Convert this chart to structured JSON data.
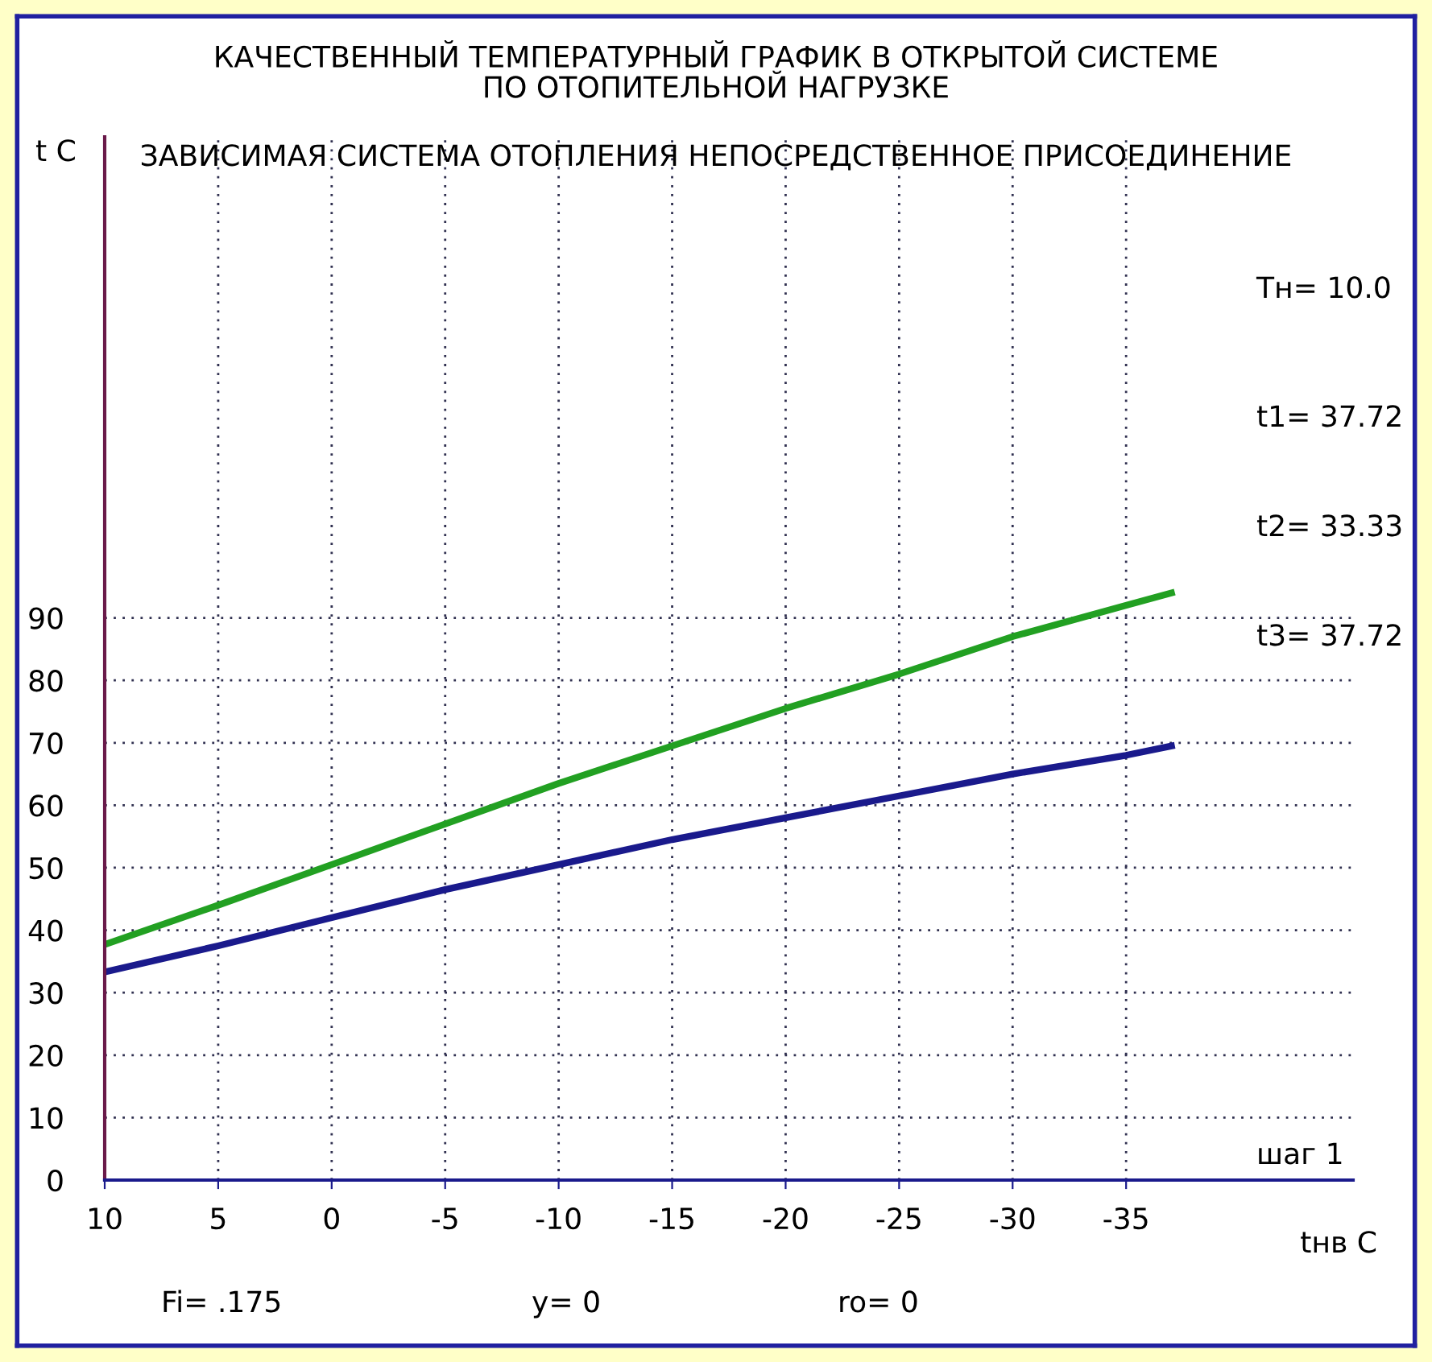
{
  "chart_data": {
    "type": "line",
    "title": "КАЧЕСТВЕННЫЙ ТЕМПЕРАТУРНЫЙ ГРАФИК В ОТКРЫТОЙ СИСТЕМЕ\nПО ОТОПИТЕЛЬНОЙ НАГРУЗКЕ",
    "subtitle": "ЗАВИСИМАЯ СИСТЕМА ОТОПЛЕНИЯ НЕПОСРЕДСТВЕННОЕ ПРИСОЕДИНЕНИЕ",
    "xlabel": "tнв C",
    "ylabel": "t C",
    "x": [
      10,
      5,
      0,
      -5,
      -10,
      -15,
      -20,
      -25,
      -30,
      -35,
      -37
    ],
    "series": [
      {
        "color": "#22a022",
        "values": [
          37.7,
          44,
          50.5,
          57,
          63.5,
          69.5,
          75.5,
          81,
          87,
          92,
          94
        ]
      },
      {
        "color": "#1a1a8c",
        "values": [
          33.3,
          37.5,
          42,
          46.5,
          50.5,
          54.5,
          58,
          61.5,
          65,
          68,
          69.5
        ]
      }
    ],
    "xlim": [
      10,
      -45
    ],
    "ylim": [
      0,
      167
    ],
    "xticks": [
      10,
      5,
      0,
      -5,
      -10,
      -15,
      -20,
      -25,
      -30,
      -35
    ],
    "yticks": [
      0,
      10,
      20,
      30,
      40,
      50,
      60,
      70,
      80,
      90
    ],
    "grid": true,
    "legend": false,
    "marker": "none",
    "line_style": "solid",
    "annotations": [
      "Tн= 10.0",
      "t1= 37.72",
      "t2= 33.33",
      "t3= 37.72",
      "шаг 1",
      "Fi= .175",
      "у= 0",
      "ro= 0"
    ]
  }
}
